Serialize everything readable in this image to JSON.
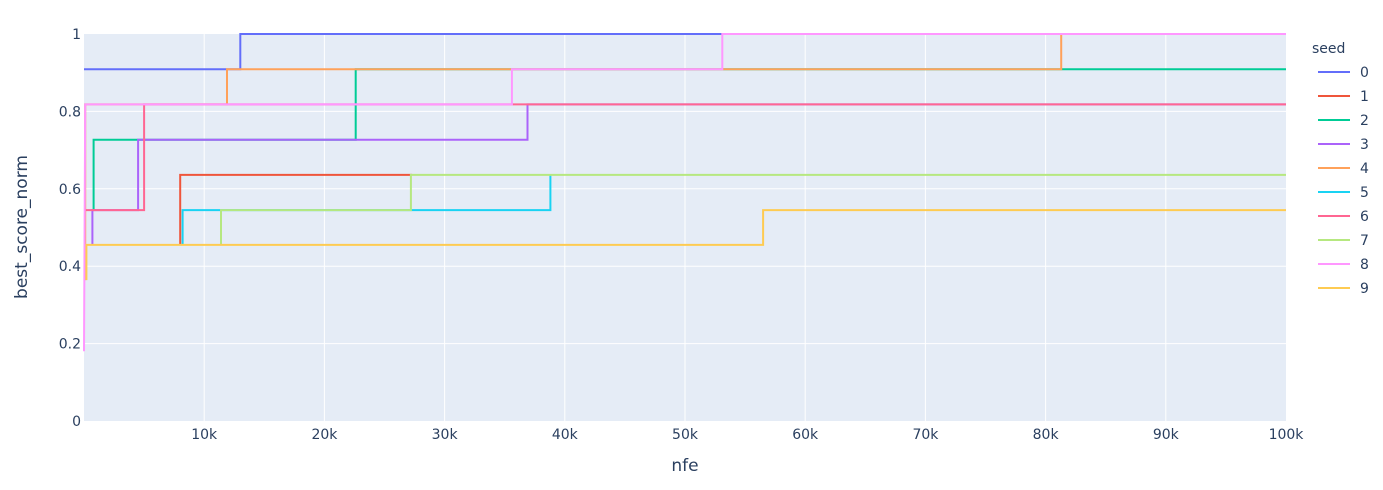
{
  "chart_data": {
    "type": "line",
    "line_shape": "step",
    "xlabel": "nfe",
    "ylabel": "best_score_norm",
    "xlim": [
      0,
      100000
    ],
    "ylim": [
      0,
      1
    ],
    "x_ticks": [
      10000,
      20000,
      30000,
      40000,
      50000,
      60000,
      70000,
      80000,
      90000,
      100000
    ],
    "x_tick_labels": [
      "10k",
      "20k",
      "30k",
      "40k",
      "50k",
      "60k",
      "70k",
      "80k",
      "90k",
      "100k"
    ],
    "y_ticks": [
      0,
      0.2,
      0.4,
      0.6,
      0.8,
      1
    ],
    "y_tick_labels": [
      "0",
      "0.2",
      "0.4",
      "0.6",
      "0.8",
      "1"
    ],
    "grid": true,
    "plot_background": "#e5ecf6",
    "legend_title": "seed",
    "legend_position": "right",
    "series": [
      {
        "name": "0",
        "color": "#636efa",
        "points": [
          [
            0,
            0.909
          ],
          [
            13000,
            0.909
          ],
          [
            13000,
            1.0
          ],
          [
            100000,
            1.0
          ]
        ]
      },
      {
        "name": "1",
        "color": "#ef553b",
        "points": [
          [
            8000,
            0.455
          ],
          [
            8000,
            0.636
          ],
          [
            27300,
            0.636
          ]
        ]
      },
      {
        "name": "2",
        "color": "#00cc96",
        "points": [
          [
            800,
            0.545
          ],
          [
            800,
            0.727
          ],
          [
            22600,
            0.727
          ],
          [
            22600,
            0.909
          ],
          [
            100000,
            0.909
          ]
        ]
      },
      {
        "name": "3",
        "color": "#ab63fa",
        "points": [
          [
            700,
            0.455
          ],
          [
            700,
            0.545
          ],
          [
            4500,
            0.545
          ],
          [
            4500,
            0.727
          ],
          [
            36900,
            0.727
          ],
          [
            36900,
            0.818
          ],
          [
            100000,
            0.818
          ]
        ]
      },
      {
        "name": "4",
        "color": "#ffa15a",
        "points": [
          [
            100,
            0.364
          ],
          [
            100,
            0.818
          ],
          [
            11900,
            0.818
          ],
          [
            11900,
            0.909
          ],
          [
            81300,
            0.909
          ],
          [
            81300,
            1.0
          ],
          [
            100000,
            1.0
          ]
        ]
      },
      {
        "name": "5",
        "color": "#19d3f3",
        "points": [
          [
            8200,
            0.455
          ],
          [
            8200,
            0.545
          ],
          [
            27200,
            0.545
          ],
          [
            38800,
            0.545
          ],
          [
            38800,
            0.636
          ]
        ]
      },
      {
        "name": "6",
        "color": "#ff6692",
        "points": [
          [
            100,
            0.545
          ],
          [
            5000,
            0.545
          ],
          [
            5000,
            0.818
          ],
          [
            100000,
            0.818
          ]
        ]
      },
      {
        "name": "7",
        "color": "#b6e880",
        "points": [
          [
            11400,
            0.455
          ],
          [
            11400,
            0.545
          ],
          [
            27200,
            0.545
          ],
          [
            27200,
            0.636
          ],
          [
            100000,
            0.636
          ]
        ]
      },
      {
        "name": "8",
        "color": "#ff97ff",
        "points": [
          [
            0,
            0.18
          ],
          [
            100,
            0.818
          ],
          [
            35600,
            0.818
          ],
          [
            35600,
            0.909
          ],
          [
            53100,
            0.909
          ],
          [
            53100,
            1.0
          ],
          [
            100000,
            1.0
          ]
        ]
      },
      {
        "name": "9",
        "color": "#fecb52",
        "points": [
          [
            200,
            0.364
          ],
          [
            200,
            0.455
          ],
          [
            56500,
            0.455
          ],
          [
            56500,
            0.545
          ],
          [
            100000,
            0.545
          ]
        ]
      }
    ]
  }
}
